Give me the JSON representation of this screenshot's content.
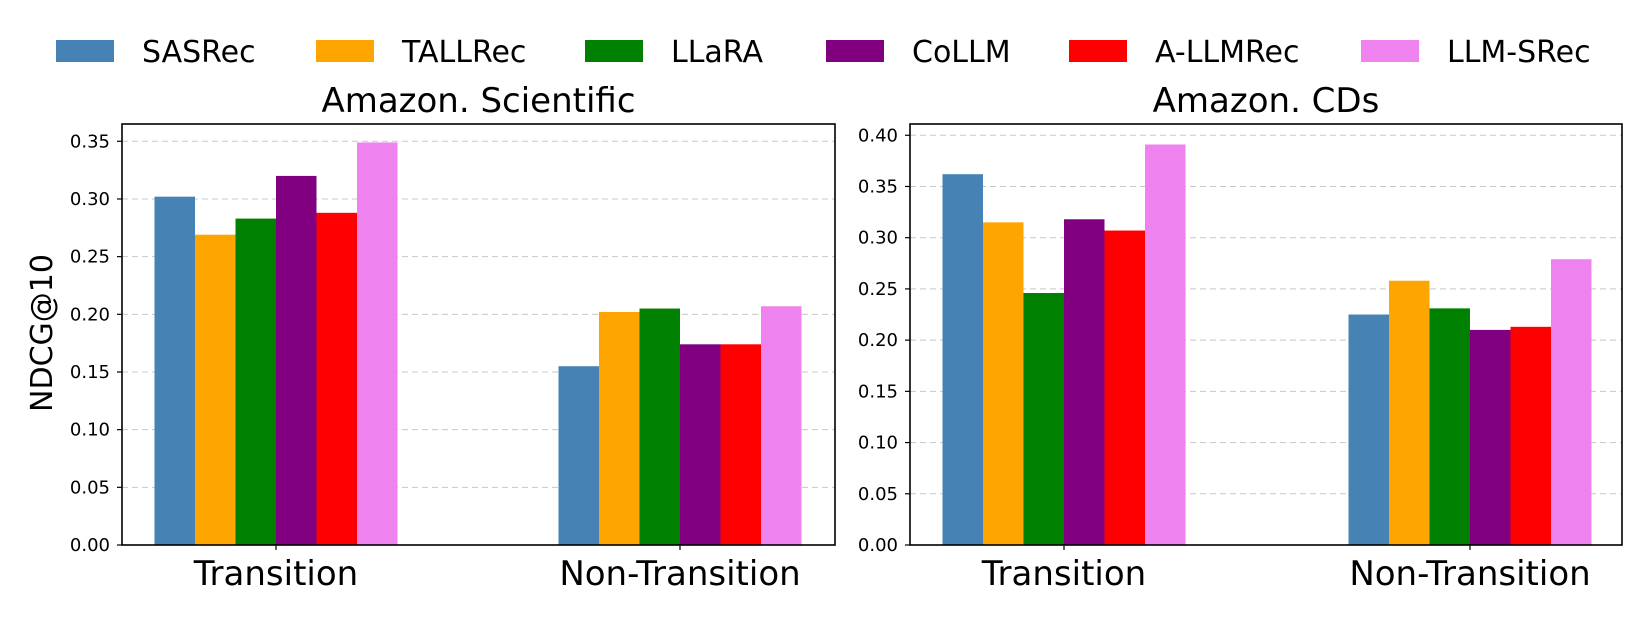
{
  "chart_data": {
    "legend": {
      "placement": "top-center",
      "entries": [
        {
          "name": "SASRec",
          "color": "#4682b4"
        },
        {
          "name": "TALLRec",
          "color": "#ffa500"
        },
        {
          "name": "LLaRA",
          "color": "#008000"
        },
        {
          "name": "CoLLM",
          "color": "#800080"
        },
        {
          "name": "A-LLMRec",
          "color": "#ff0000"
        },
        {
          "name": "LLM-SRec",
          "color": "#ee82ee"
        }
      ]
    },
    "ylabel": "NDCG@10",
    "panels": [
      {
        "type": "bar",
        "title": "Amazon. Scientific",
        "categories": [
          "Transition",
          "Non-Transition"
        ],
        "ylim": [
          0,
          0.365
        ],
        "yticks": [
          0.0,
          0.05,
          0.1,
          0.15,
          0.2,
          0.25,
          0.3,
          0.35
        ],
        "grid": true,
        "series": [
          {
            "name": "SASRec",
            "values": [
              0.302,
              0.155
            ]
          },
          {
            "name": "TALLRec",
            "values": [
              0.269,
              0.202
            ]
          },
          {
            "name": "LLaRA",
            "values": [
              0.283,
              0.205
            ]
          },
          {
            "name": "CoLLM",
            "values": [
              0.32,
              0.174
            ]
          },
          {
            "name": "A-LLMRec",
            "values": [
              0.288,
              0.174
            ]
          },
          {
            "name": "LLM-SRec",
            "values": [
              0.349,
              0.207
            ]
          }
        ]
      },
      {
        "type": "bar",
        "title": "Amazon. CDs",
        "categories": [
          "Transition",
          "Non-Transition"
        ],
        "ylim": [
          0,
          0.411
        ],
        "yticks": [
          0.0,
          0.05,
          0.1,
          0.15,
          0.2,
          0.25,
          0.3,
          0.35,
          0.4
        ],
        "grid": true,
        "series": [
          {
            "name": "SASRec",
            "values": [
              0.362,
              0.225
            ]
          },
          {
            "name": "TALLRec",
            "values": [
              0.315,
              0.258
            ]
          },
          {
            "name": "LLaRA",
            "values": [
              0.246,
              0.231
            ]
          },
          {
            "name": "CoLLM",
            "values": [
              0.318,
              0.21
            ]
          },
          {
            "name": "A-LLMRec",
            "values": [
              0.307,
              0.213
            ]
          },
          {
            "name": "LLM-SRec",
            "values": [
              0.391,
              0.279
            ]
          }
        ]
      }
    ]
  }
}
